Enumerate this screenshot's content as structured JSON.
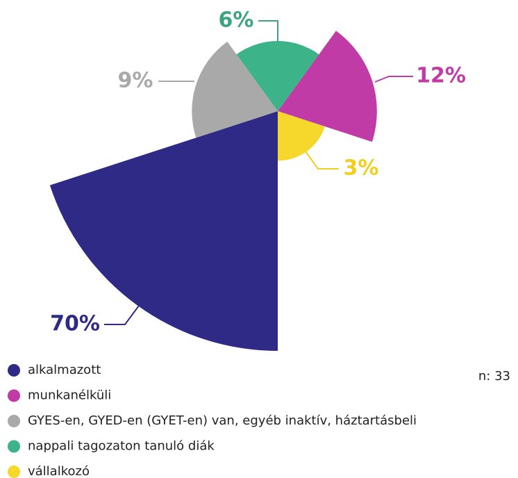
{
  "chart_data": {
    "type": "pie",
    "categories": [
      "alkalmazott",
      "munkanélküli",
      "GYES-en, GYED-en (GYET-en) van, egyéb inaktív, háztartásbeli",
      "nappali tagozaton tanuló diák",
      "vállalkozó"
    ],
    "values": [
      70,
      12,
      9,
      6,
      3
    ],
    "value_labels": [
      "70%",
      "12%",
      "9%",
      "6%",
      "3%"
    ],
    "colors": [
      "#2e2a86",
      "#c03ba6",
      "#a9a9a9",
      "#3db38a",
      "#f6d82d"
    ],
    "note": "n: 33"
  }
}
